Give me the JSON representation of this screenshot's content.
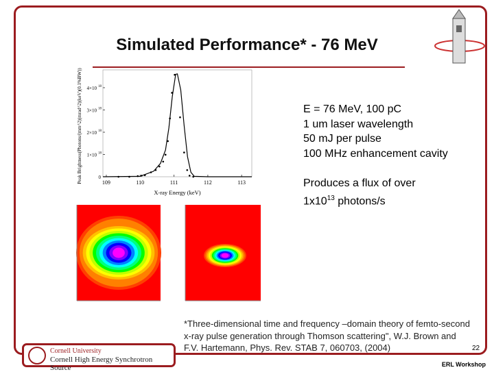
{
  "slide": {
    "title": "Simulated Performance* - 76 MeV",
    "specs": [
      "E = 76 MeV, 100 pC",
      "1 um laser wavelength",
      "50 mJ per pulse",
      "100 MHz enhancement cavity"
    ],
    "flux_prefix": "Produces a flux of over",
    "flux_base": "1x10",
    "flux_exp": "13",
    "flux_suffix": " photons/s",
    "footnote": "*Three-dimensional time and frequency –domain theory of femto-second x-ray pulse generation through Thomson scattering\", W.J. Brown and F.V. Hartemann, Phys. Rev. STAB 7, 060703, (2004)",
    "page_number": "22",
    "footer": "ERL Workshop",
    "logo": {
      "line1": "Cornell University",
      "line2": "Cornell High Energy Synchrotron Source"
    },
    "accent_color": "#9b1c1f"
  },
  "chart_data": [
    {
      "type": "scatter",
      "xlabel": "X-ray Energy (keV)",
      "ylabel": "Peak Brightness(Photons/(mm^2)(mrad^2)(keV)(0.1%BW))",
      "xlim": [
        108.9,
        113.3
      ],
      "ylim": [
        0,
        4.8e+18
      ],
      "xticks": [
        109,
        110,
        111,
        112,
        113
      ],
      "xtick_labels": [
        "109",
        "110",
        "111",
        "112",
        "113"
      ],
      "yticks": [
        0,
        1e+18,
        2e+18,
        3e+18,
        4e+18
      ],
      "ytick_labels": [
        "0",
        "1×10",
        "2×10",
        "3×10",
        "4×10"
      ],
      "ytick_exp": "18",
      "series": [
        {
          "kind": "points",
          "x": [
            109.36,
            109.68,
            109.93,
            110.04,
            110.14,
            110.32,
            110.46,
            110.57,
            110.68,
            110.75,
            110.82,
            110.88,
            110.94,
            111.02,
            111.18,
            111.3,
            111.39,
            111.46,
            111.57
          ],
          "y": [
            0,
            0,
            3e+16,
            5e+16,
            7e+16,
            2e+17,
            3e+17,
            4.6e+17,
            6.8e+17,
            9.9e+17,
            1.6e+18,
            2.62e+18,
            3.77e+18,
            4.58e+18,
            2.67e+18,
            1.09e+18,
            3e+17,
            5e+16,
            0
          ]
        },
        {
          "kind": "line",
          "x": [
            108.9,
            110,
            110.4,
            110.6,
            110.75,
            110.85,
            110.95,
            111.05,
            111.1,
            111.2,
            111.3,
            111.4,
            111.5,
            111.6,
            112,
            113.3
          ],
          "y": [
            0,
            2e+16,
            2.5e+17,
            6e+17,
            1.2e+18,
            2.2e+18,
            3.6e+18,
            4.6e+18,
            4.62e+18,
            3.9e+18,
            2.3e+18,
            9e+17,
            2e+17,
            2e+16,
            0,
            0
          ]
        }
      ]
    },
    {
      "type": "heatmap",
      "description_colors": [
        "#ff0000",
        "#ff8000",
        "#ffff00",
        "#00ff00",
        "#00ffff",
        "#0000ff",
        "#ff00ff"
      ]
    },
    {
      "type": "heatmap"
    }
  ]
}
